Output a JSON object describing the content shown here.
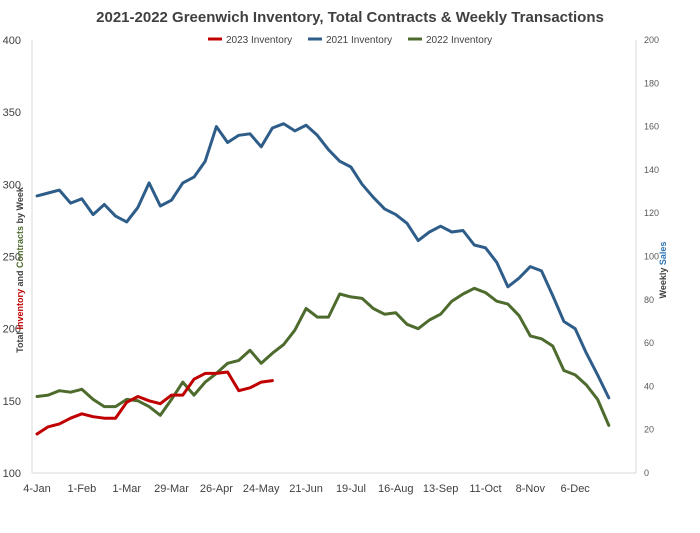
{
  "chart_data": {
    "type": "line",
    "title": "2021-2022 Greenwich Inventory, Total Contracts & Weekly Transactions",
    "ylabel_left": {
      "part1": "Total ",
      "part2": "Inventory",
      "part3": " and ",
      "part4": "Contracts",
      "part5": " by Week"
    },
    "ylabel_right": {
      "part1": "Weekly ",
      "part2": "Sales"
    },
    "ylim_left": [
      100,
      400
    ],
    "ylim_right": [
      0,
      200
    ],
    "y_ticks_left": [
      "100",
      "150",
      "200",
      "250",
      "300",
      "350",
      "400"
    ],
    "y_ticks_right": [
      "0",
      "20",
      "40",
      "60",
      "80",
      "100",
      "120",
      "140",
      "160",
      "180",
      "200"
    ],
    "x_tick_labels": [
      "4-Jan",
      "1-Feb",
      "1-Mar",
      "29-Mar",
      "26-Apr",
      "24-May",
      "21-Jun",
      "19-Jul",
      "16-Aug",
      "13-Sep",
      "11-Oct",
      "8-Nov",
      "6-Dec"
    ],
    "x_tick_weeks": [
      0,
      4,
      8,
      12,
      16,
      20,
      24,
      28,
      32,
      36,
      40,
      44,
      48
    ],
    "week_count": 53,
    "legend_position": "top-center",
    "grid": false,
    "series": [
      {
        "name": "2023 Inventory",
        "color": "#c00000",
        "values": [
          127,
          132,
          134,
          138,
          141,
          139,
          138,
          138,
          149,
          153,
          150,
          148,
          154,
          154,
          165,
          169,
          169,
          170,
          157,
          159,
          163,
          164
        ]
      },
      {
        "name": "2021 Inventory",
        "color": "#2e5d8a",
        "values": [
          292,
          294,
          296,
          287,
          290,
          279,
          286,
          278,
          274,
          284,
          301,
          285,
          289,
          301,
          305,
          316,
          340,
          329,
          334,
          335,
          326,
          339,
          342,
          337,
          341,
          334,
          324,
          316,
          312,
          300,
          291,
          283,
          279,
          273,
          261,
          267,
          271,
          267,
          268,
          258,
          256,
          246,
          229,
          235,
          243,
          240,
          223,
          205,
          200,
          183,
          168,
          152
        ]
      },
      {
        "name": "2022 Inventory",
        "color": "#4e6b2e",
        "values": [
          153,
          154,
          157,
          156,
          158,
          151,
          146,
          146,
          151,
          150,
          146,
          140,
          151,
          163,
          154,
          163,
          169,
          176,
          178,
          185,
          176,
          183,
          189,
          199,
          214,
          208,
          208,
          224,
          222,
          221,
          214,
          210,
          211,
          203,
          200,
          206,
          210,
          219,
          224,
          228,
          225,
          219,
          217,
          209,
          195,
          193,
          188,
          171,
          168,
          161,
          151,
          133
        ]
      }
    ]
  }
}
